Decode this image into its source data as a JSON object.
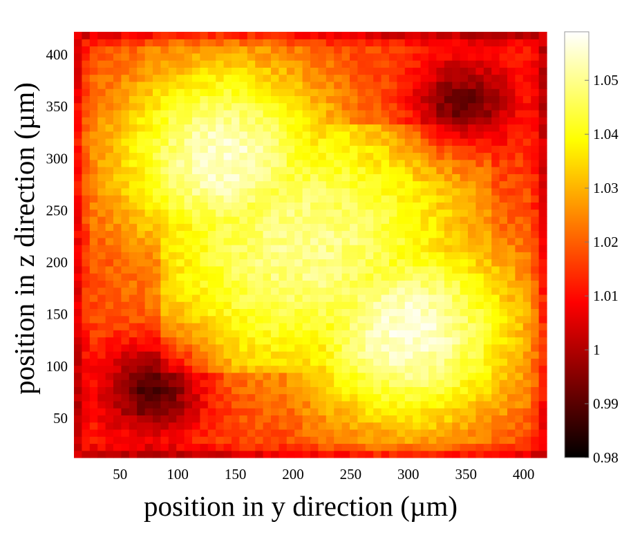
{
  "chart_data": {
    "type": "heatmap",
    "xlabel": "position in y direction (µm)",
    "ylabel": "position in z direction (µm)",
    "xlim": [
      10,
      420
    ],
    "ylim": [
      12,
      422
    ],
    "xticks": [
      50,
      100,
      150,
      200,
      250,
      300,
      350,
      400
    ],
    "yticks": [
      50,
      100,
      150,
      200,
      250,
      300,
      350,
      400
    ],
    "grid": false,
    "colorbar": {
      "colormap": "hot",
      "range": [
        0.98,
        1.059
      ],
      "ticks": [
        0.98,
        0.99,
        1,
        1.01,
        1.02,
        1.03,
        1.04,
        1.05
      ],
      "tick_labels": [
        "0.98",
        "0.99",
        "1",
        "1.01",
        "1.02",
        "1.03",
        "1.04",
        "1.05"
      ]
    },
    "grid_cells": [
      60,
      60
    ],
    "field_summary": {
      "background_value": 1.012,
      "border_value": 0.998,
      "hot_region": [
        {
          "y": 140,
          "z": 300,
          "value": 1.055
        },
        {
          "y": 300,
          "z": 135,
          "value": 1.056
        },
        {
          "y": 220,
          "z": 220,
          "value": 1.045
        }
      ],
      "cold_region": [
        {
          "y": 80,
          "z": 80,
          "value": 0.983
        },
        {
          "y": 345,
          "z": 350,
          "value": 0.986
        }
      ]
    }
  }
}
